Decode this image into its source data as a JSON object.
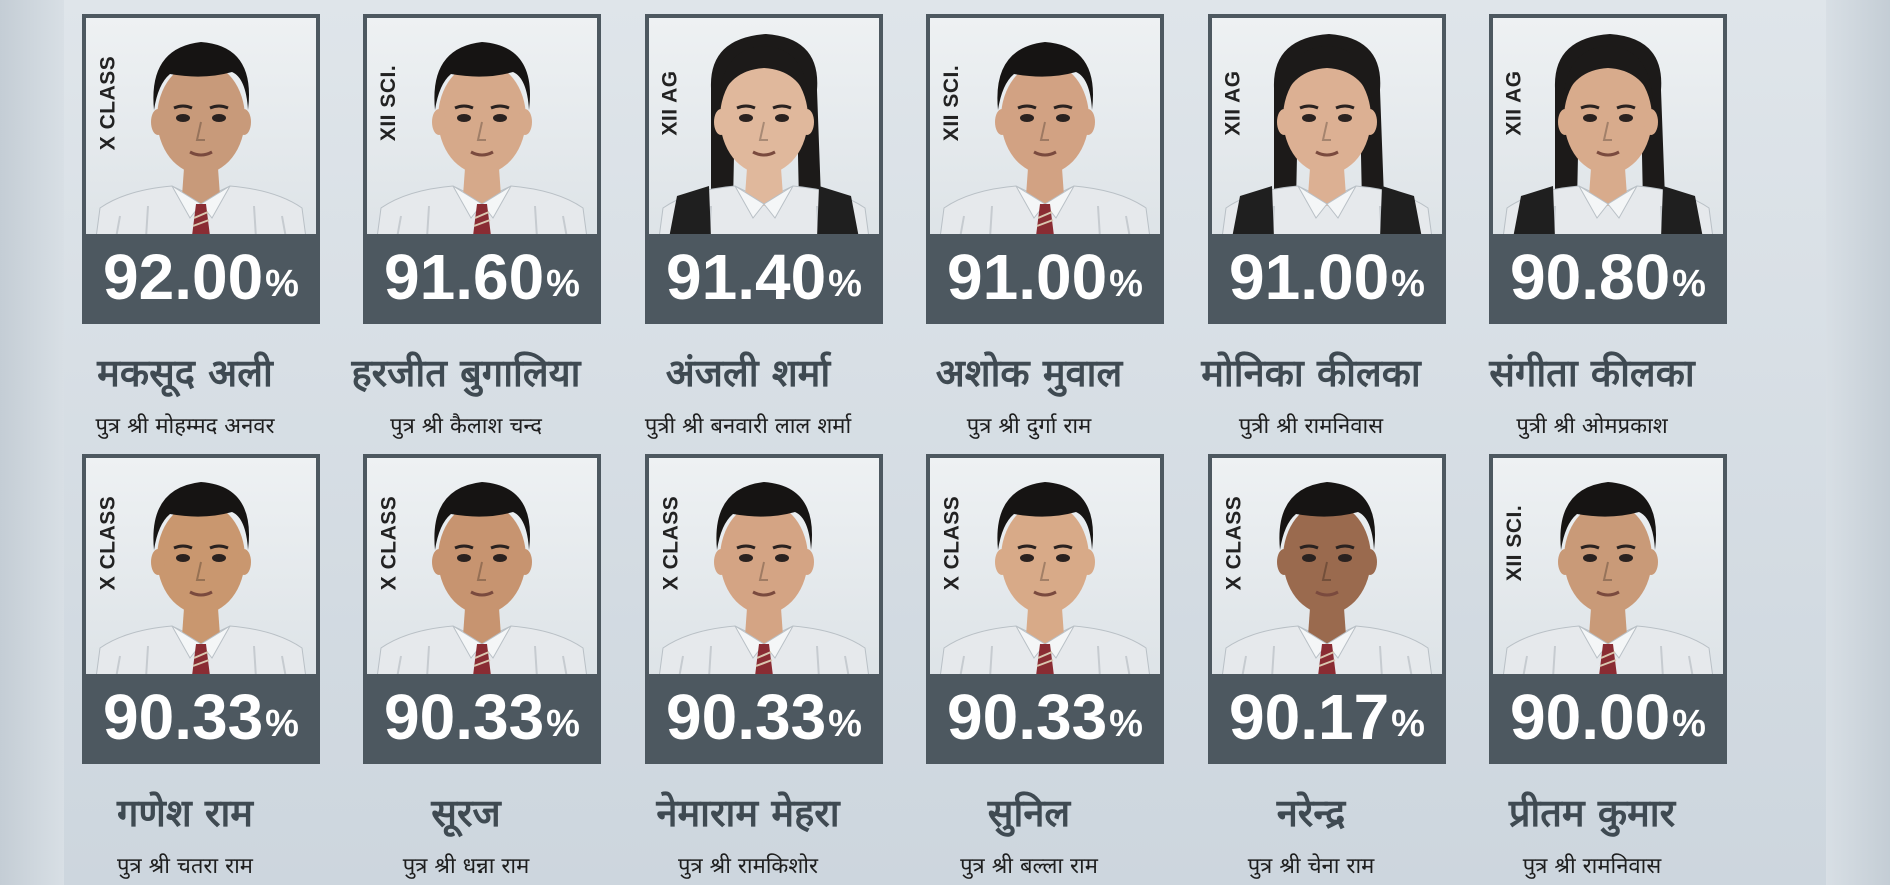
{
  "colors": {
    "frame": "#4d5860",
    "name_text": "#3f4a52",
    "score_text": "#ffffff",
    "background": "#d8dfe5"
  },
  "students": [
    {
      "class": "X CLASS",
      "score": "92.00",
      "percent": "%",
      "name": "मकसूद अली",
      "parent": "पुत्र श्री मोहम्मद अनवर"
    },
    {
      "class": "XII SCI.",
      "score": "91.60",
      "percent": "%",
      "name": "हरजीत बुगालिया",
      "parent": "पुत्र श्री कैलाश चन्द"
    },
    {
      "class": "XII AG",
      "score": "91.40",
      "percent": "%",
      "name": "अंजली शर्मा",
      "parent": "पुत्री श्री बनवारी लाल शर्मा"
    },
    {
      "class": "XII SCI.",
      "score": "91.00",
      "percent": "%",
      "name": "अशोक मुवाल",
      "parent": "पुत्र श्री दुर्गा राम"
    },
    {
      "class": "XII AG",
      "score": "91.00",
      "percent": "%",
      "name": "मोनिका कीलका",
      "parent": "पुत्री श्री रामनिवास"
    },
    {
      "class": "XII AG",
      "score": "90.80",
      "percent": "%",
      "name": "संगीता कीलका",
      "parent": "पुत्री श्री ओमप्रकाश"
    },
    {
      "class": "X CLASS",
      "score": "90.33",
      "percent": "%",
      "name": "गणेश राम",
      "parent": "पुत्र श्री चतरा राम"
    },
    {
      "class": "X CLASS",
      "score": "90.33",
      "percent": "%",
      "name": "सूरज",
      "parent": "पुत्र श्री धन्ना राम"
    },
    {
      "class": "X CLASS",
      "score": "90.33",
      "percent": "%",
      "name": "नेमाराम मेहरा",
      "parent": "पुत्र श्री रामकिशोर"
    },
    {
      "class": "X CLASS",
      "score": "90.33",
      "percent": "%",
      "name": "सुनिल",
      "parent": "पुत्र श्री बल्ला राम"
    },
    {
      "class": "X CLASS",
      "score": "90.17",
      "percent": "%",
      "name": "नरेन्द्र",
      "parent": "पुत्र श्री चेना राम"
    },
    {
      "class": "XII SCI.",
      "score": "90.00",
      "percent": "%",
      "name": "प्रीतम कुमार",
      "parent": "पुत्र श्री रामनिवास"
    }
  ]
}
